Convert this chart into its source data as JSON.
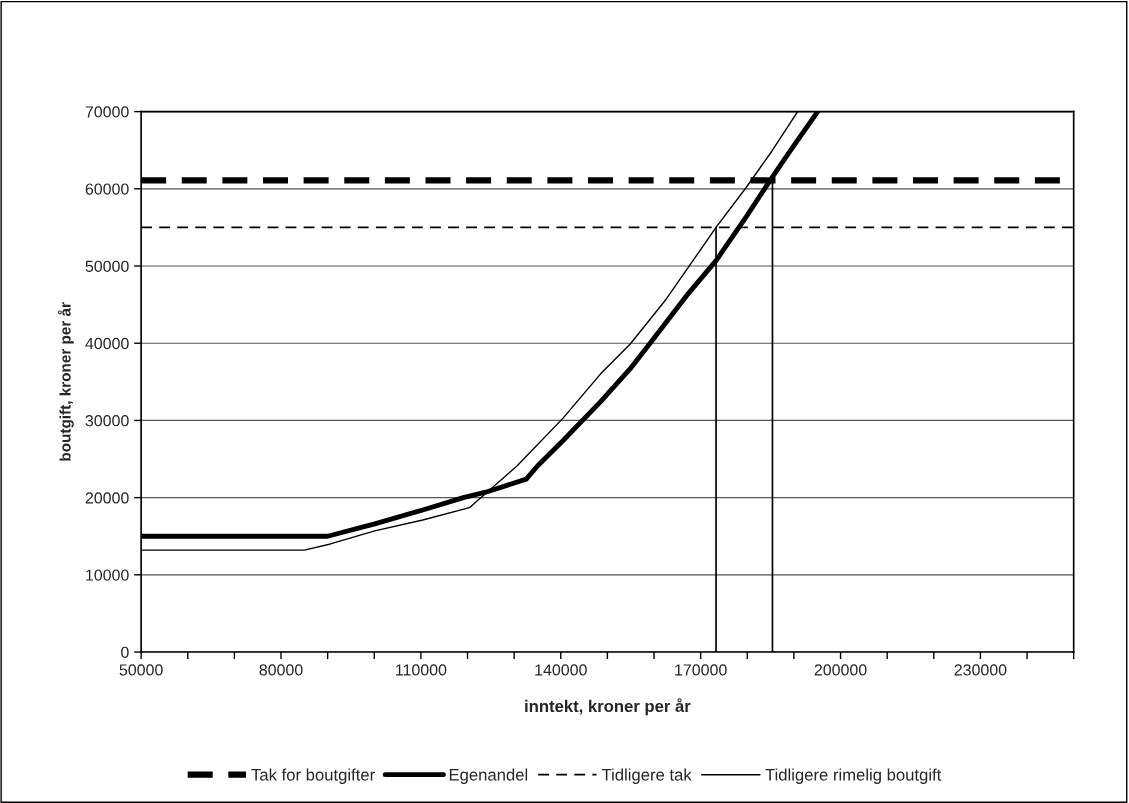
{
  "chart_data": {
    "type": "line",
    "xlabel": "inntekt, kroner per år",
    "ylabel": "boutgift, kroner per år",
    "xlim": [
      50000,
      250000
    ],
    "ylim": [
      0,
      70000
    ],
    "xticks": [
      50000,
      {
        "value": 60000,
        "label": null
      },
      {
        "value": 70000,
        "label": null
      },
      80000,
      {
        "value": 90000,
        "label": null
      },
      {
        "value": 100000,
        "label": null
      },
      110000,
      {
        "value": 120000,
        "label": null
      },
      {
        "value": 130000,
        "label": null
      },
      140000,
      {
        "value": 150000,
        "label": null
      },
      {
        "value": 160000,
        "label": null
      },
      170000,
      {
        "value": 180000,
        "label": null
      },
      {
        "value": 190000,
        "label": null
      },
      200000,
      {
        "value": 210000,
        "label": null
      },
      {
        "value": 220000,
        "label": null
      },
      230000,
      {
        "value": 240000,
        "label": null
      },
      {
        "value": 250000,
        "label": null
      }
    ],
    "yticks": [
      0,
      10000,
      20000,
      30000,
      40000,
      50000,
      60000,
      70000
    ],
    "grid": "y",
    "legend": "bottom",
    "marker": "none",
    "series": [
      {
        "name": "Tak for boutgifter",
        "color": "#000000",
        "line_style": "dashed",
        "x": [
          50000,
          250000
        ],
        "values": [
          61100,
          61100
        ]
      },
      {
        "name": "Egenandel",
        "color": "#000000",
        "line_style": "solid",
        "x": [
          50000,
          90000,
          100100,
          110400,
          119100,
          123900,
          132600,
          135000,
          140500,
          148500,
          154900,
          159400,
          167300,
          173300,
          179800,
          184900,
          189200,
          195100
        ],
        "values": [
          15000,
          15000,
          16600,
          18400,
          20000,
          20700,
          22400,
          24100,
          27400,
          32400,
          36700,
          40200,
          46400,
          50700,
          56400,
          61100,
          64900,
          70000
        ]
      },
      {
        "name": "Tidligere tak",
        "color": "#000000",
        "line_style": "dashed",
        "x": [
          50000,
          250000
        ],
        "values": [
          55000,
          55000
        ]
      },
      {
        "name": "Tidligere rimelig boutgift",
        "color": "#000000",
        "line_style": "solid",
        "x": [
          50000,
          85000,
          90600,
          100100,
          110400,
          120400,
          130600,
          140500,
          148500,
          154900,
          162600,
          173300,
          179800,
          185300,
          190800
        ],
        "values": [
          13200,
          13200,
          14000,
          15700,
          17100,
          18700,
          24100,
          30300,
          36000,
          39900,
          45700,
          55000,
          60200,
          64900,
          70000
        ]
      },
      {
        "color": "#000000",
        "line_style": "solid",
        "x": [
          173300,
          173300
        ],
        "values": [
          0,
          55000
        ]
      },
      {
        "color": "#000000",
        "line_style": "solid",
        "x": [
          185400,
          185400
        ],
        "values": [
          0,
          61100
        ]
      }
    ]
  }
}
